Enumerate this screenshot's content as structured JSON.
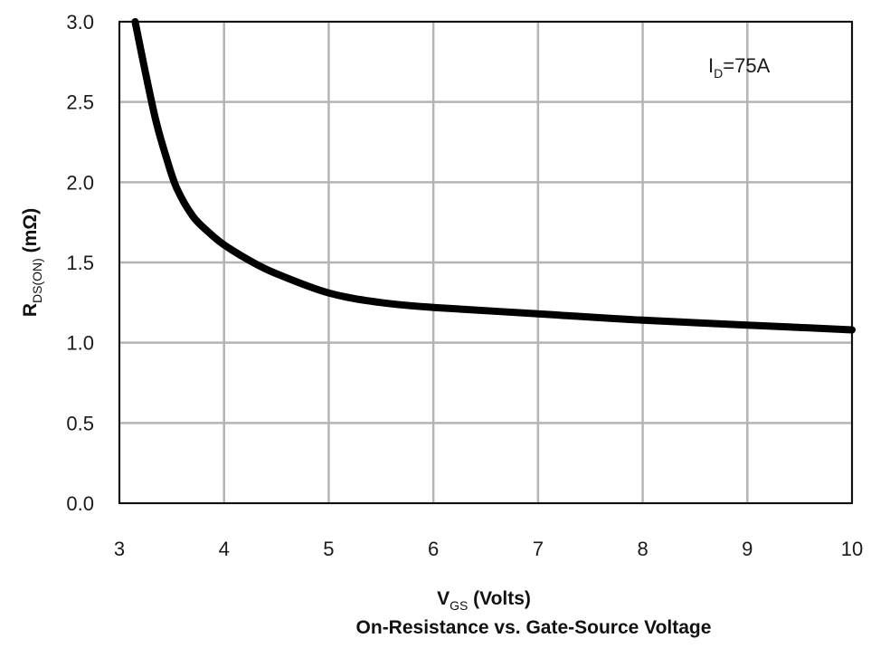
{
  "chart_data": {
    "type": "line",
    "title": "On-Resistance vs. Gate-Source Voltage",
    "xlabel": {
      "main": "V",
      "sub": "GS",
      "rest": " (Volts)"
    },
    "ylabel": {
      "main": "R",
      "sub": "DS(ON)",
      "rest": " (mΩ)"
    },
    "xlim": [
      3,
      10
    ],
    "ylim": [
      0,
      3.0
    ],
    "x_ticks": [
      3,
      4,
      5,
      6,
      7,
      8,
      9,
      10
    ],
    "x_tick_labels": [
      "3",
      "4",
      "5",
      "6",
      "7",
      "8",
      "9",
      "10"
    ],
    "y_ticks": [
      0,
      0.5,
      1.0,
      1.5,
      2.0,
      2.5,
      3.0
    ],
    "y_tick_labels": [
      "0.0",
      "0.5",
      "1.0",
      "1.5",
      "2.0",
      "2.5",
      "3.0"
    ],
    "grid": true,
    "annotation": {
      "main": "I",
      "sub": "D",
      "rest": "=75A"
    },
    "series": [
      {
        "color": "#000000",
        "x": [
          3.15,
          3.25,
          3.35,
          3.45,
          3.55,
          3.7,
          3.85,
          4.0,
          4.25,
          4.5,
          5.0,
          5.5,
          6.0,
          7.0,
          8.0,
          9.0,
          10.0
        ],
        "y": [
          3.0,
          2.68,
          2.38,
          2.15,
          1.96,
          1.79,
          1.69,
          1.61,
          1.51,
          1.43,
          1.31,
          1.25,
          1.22,
          1.18,
          1.14,
          1.11,
          1.08
        ]
      }
    ]
  }
}
